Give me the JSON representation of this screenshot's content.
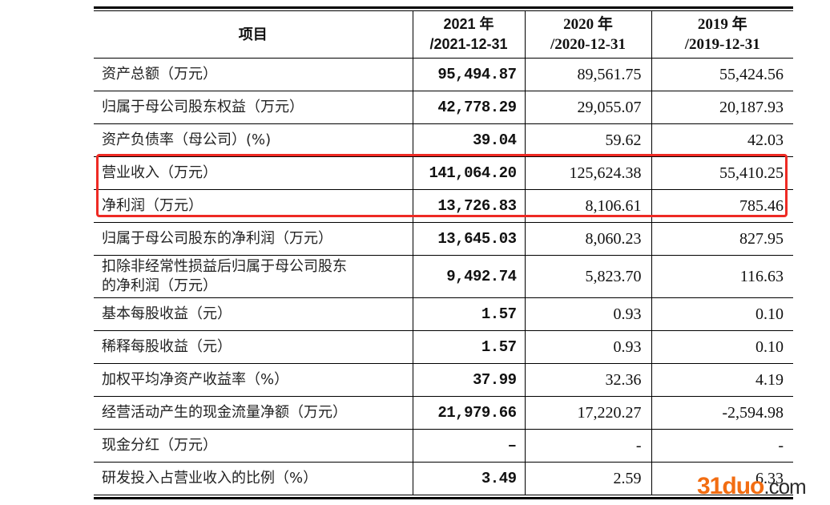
{
  "table": {
    "headers": {
      "item": "项目",
      "col_2021_year": "2021 年",
      "col_2021_date": "/2021-12-31",
      "col_2020_year": "2020 年",
      "col_2020_date": "/2020-12-31",
      "col_2019_year": "2019 年",
      "col_2019_date": "/2019-12-31"
    },
    "rows": [
      {
        "label": "资产总额（万元）",
        "v2021": "95,494.87",
        "v2020": "89,561.75",
        "v2019": "55,424.56"
      },
      {
        "label": "归属于母公司股东权益（万元）",
        "v2021": "42,778.29",
        "v2020": "29,055.07",
        "v2019": "20,187.93"
      },
      {
        "label": "资产负债率（母公司）(%)",
        "v2021": "39.04",
        "v2020": "59.62",
        "v2019": "42.03"
      },
      {
        "label": "营业收入（万元）",
        "v2021": "141,064.20",
        "v2020": "125,624.38",
        "v2019": "55,410.25"
      },
      {
        "label": "净利润（万元）",
        "v2021": "13,726.83",
        "v2020": "8,106.61",
        "v2019": "785.46"
      },
      {
        "label": "归属于母公司股东的净利润（万元）",
        "v2021": "13,645.03",
        "v2020": "8,060.23",
        "v2019": "827.95"
      },
      {
        "label_line1": "扣除非经常性损益后归属于母公司股东",
        "label_line2": "的净利润（万元）",
        "v2021": "9,492.74",
        "v2020": "5,823.70",
        "v2019": "116.63"
      },
      {
        "label": "基本每股收益（元）",
        "v2021": "1.57",
        "v2020": "0.93",
        "v2019": "0.10"
      },
      {
        "label": "稀释每股收益（元）",
        "v2021": "1.57",
        "v2020": "0.93",
        "v2019": "0.10"
      },
      {
        "label": "加权平均净资产收益率（%）",
        "v2021": "37.99",
        "v2020": "32.36",
        "v2019": "4.19"
      },
      {
        "label": "经营活动产生的现金流量净额（万元）",
        "v2021": "21,979.66",
        "v2020": "17,220.27",
        "v2019": "-2,594.98"
      },
      {
        "label": "现金分红（万元）",
        "v2021": "–",
        "v2020": "-",
        "v2019": "-"
      },
      {
        "label": "研发投入占营业收入的比例（%）",
        "v2021": "3.49",
        "v2020": "2.59",
        "v2019": "6.33"
      }
    ]
  },
  "highlight": {
    "rows": [
      "营业收入（万元）",
      "净利润（万元）"
    ],
    "color": "#ee2a24"
  },
  "watermark": {
    "brand": "31duo",
    "tld": ".com",
    "brand_color": "#f26d12"
  }
}
